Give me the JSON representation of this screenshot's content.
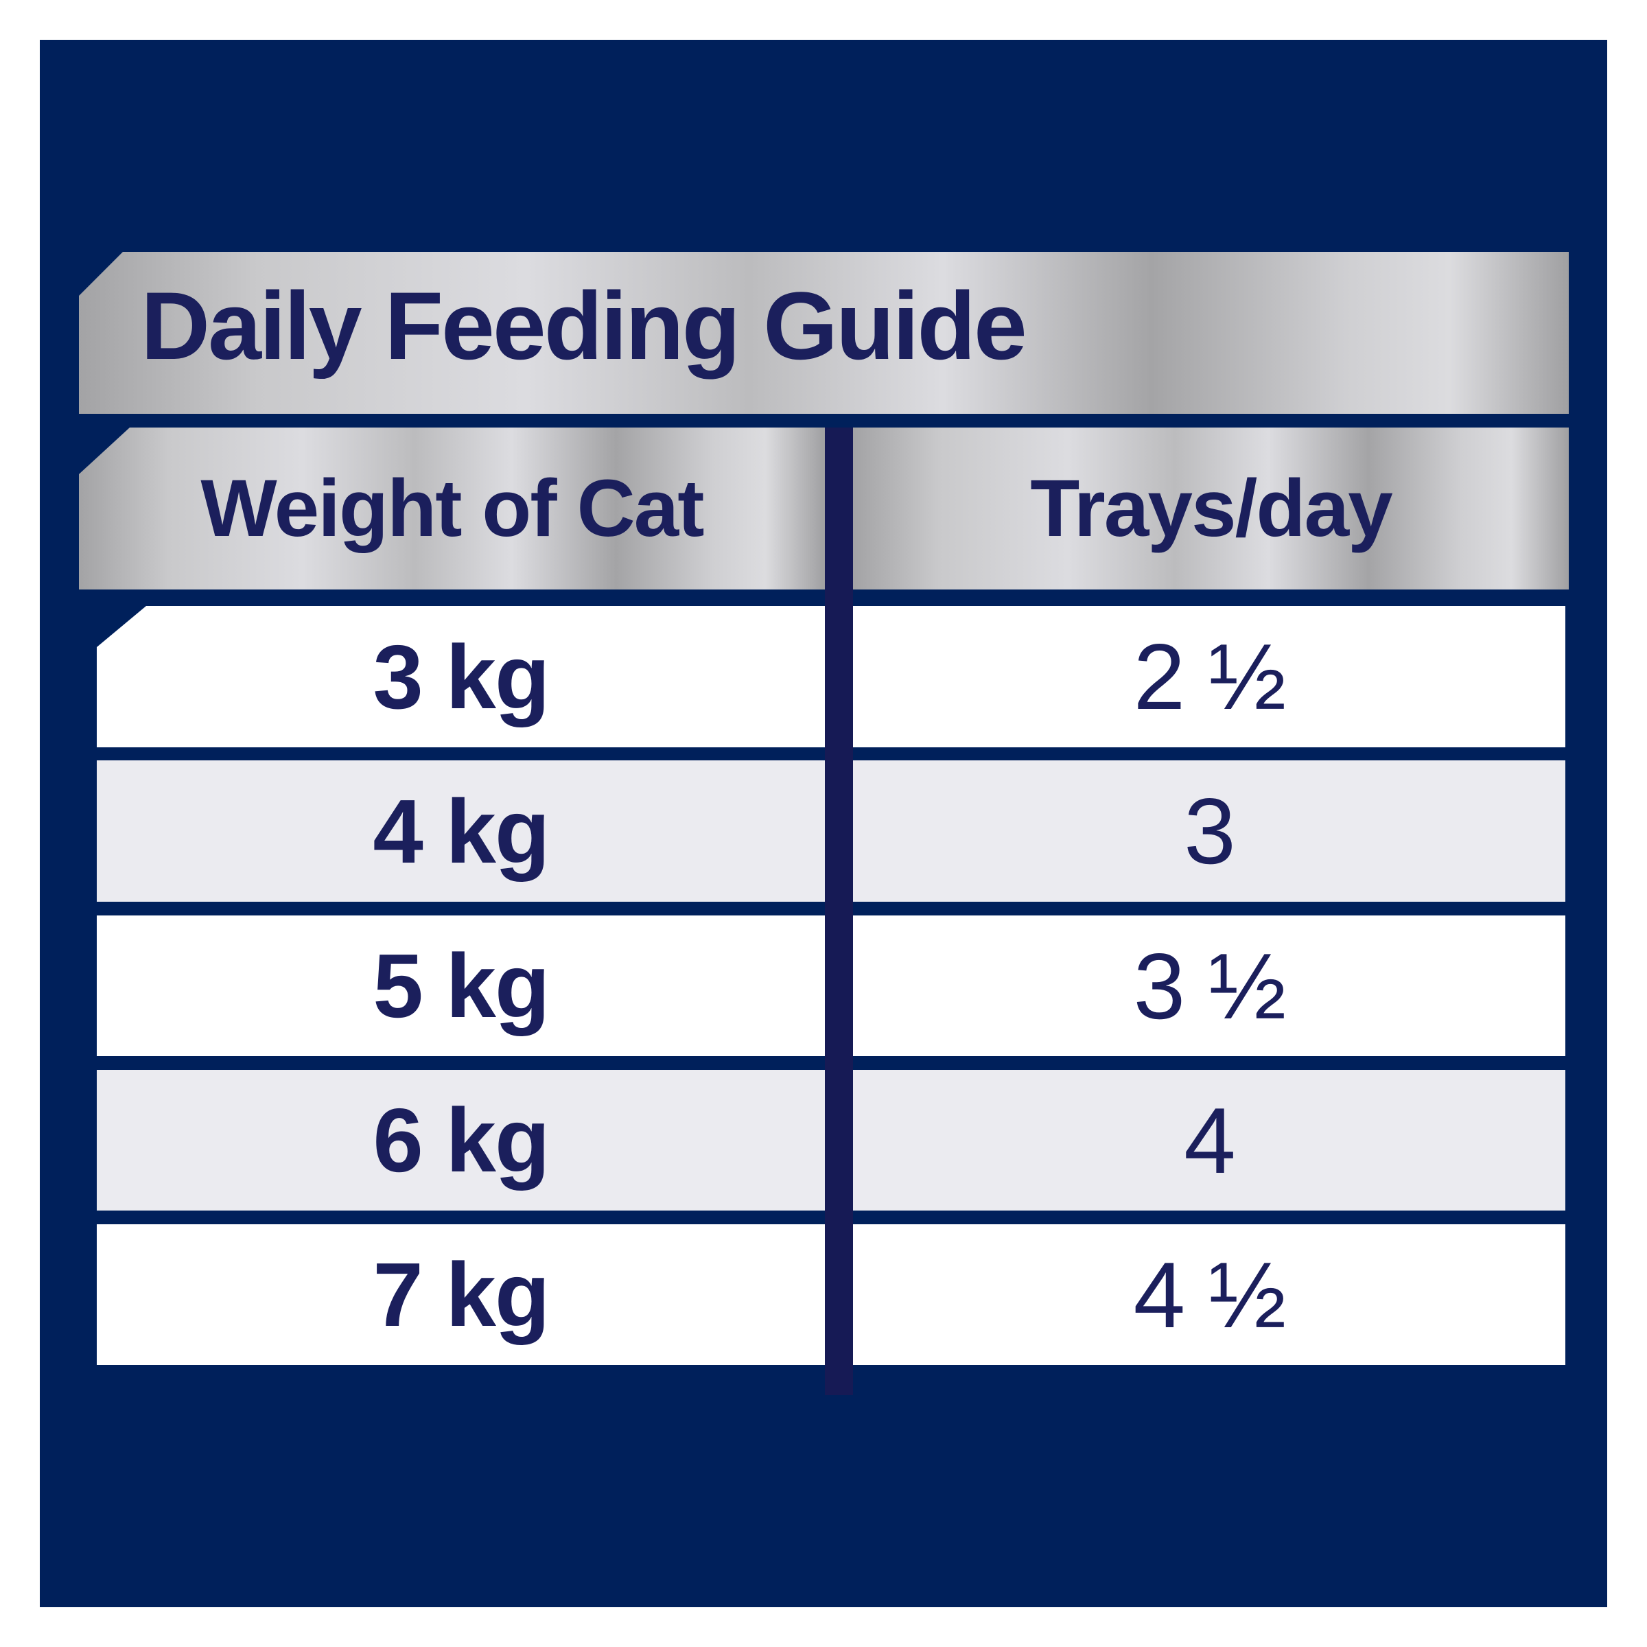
{
  "title": "Daily Feeding Guide",
  "headers": {
    "weight": "Weight of Cat",
    "trays": "Trays/day"
  },
  "rows": [
    {
      "weight": "3 kg",
      "trays": "2 ½"
    },
    {
      "weight": "4 kg",
      "trays": "3"
    },
    {
      "weight": "5 kg",
      "trays": "3 ½"
    },
    {
      "weight": "6 kg",
      "trays": "4"
    },
    {
      "weight": "7 kg",
      "trays": "4 ½"
    }
  ],
  "colors": {
    "background": "#00205b",
    "text": "#1b1f5c",
    "row_alt": "#ebebf0"
  }
}
